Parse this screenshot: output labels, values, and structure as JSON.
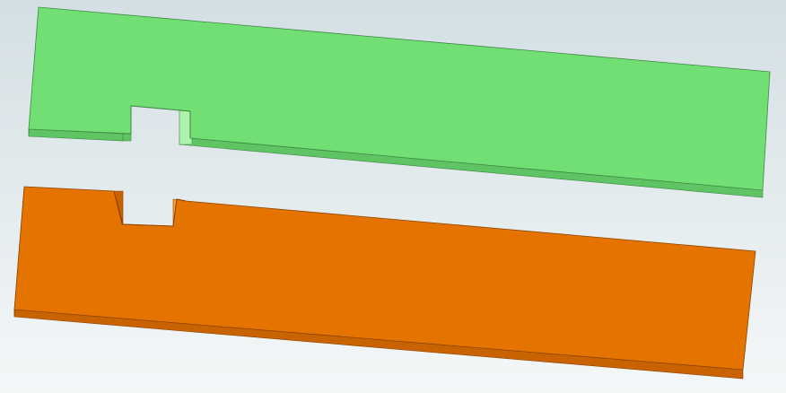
{
  "viewport": {
    "background_top": "#d3dfe3",
    "background_bottom": "#f4f7f8"
  },
  "parts": [
    {
      "name": "green-slotted-bar",
      "face_color": "#72df74",
      "side_color": "#5fc463",
      "edge_color": "#3f8a45",
      "light_color": "#aef3ac"
    },
    {
      "name": "orange-slotted-bar",
      "face_color": "#e47300",
      "side_color": "#c96200",
      "edge_color": "#8d4500",
      "light_color": "#ff9b2f"
    }
  ]
}
